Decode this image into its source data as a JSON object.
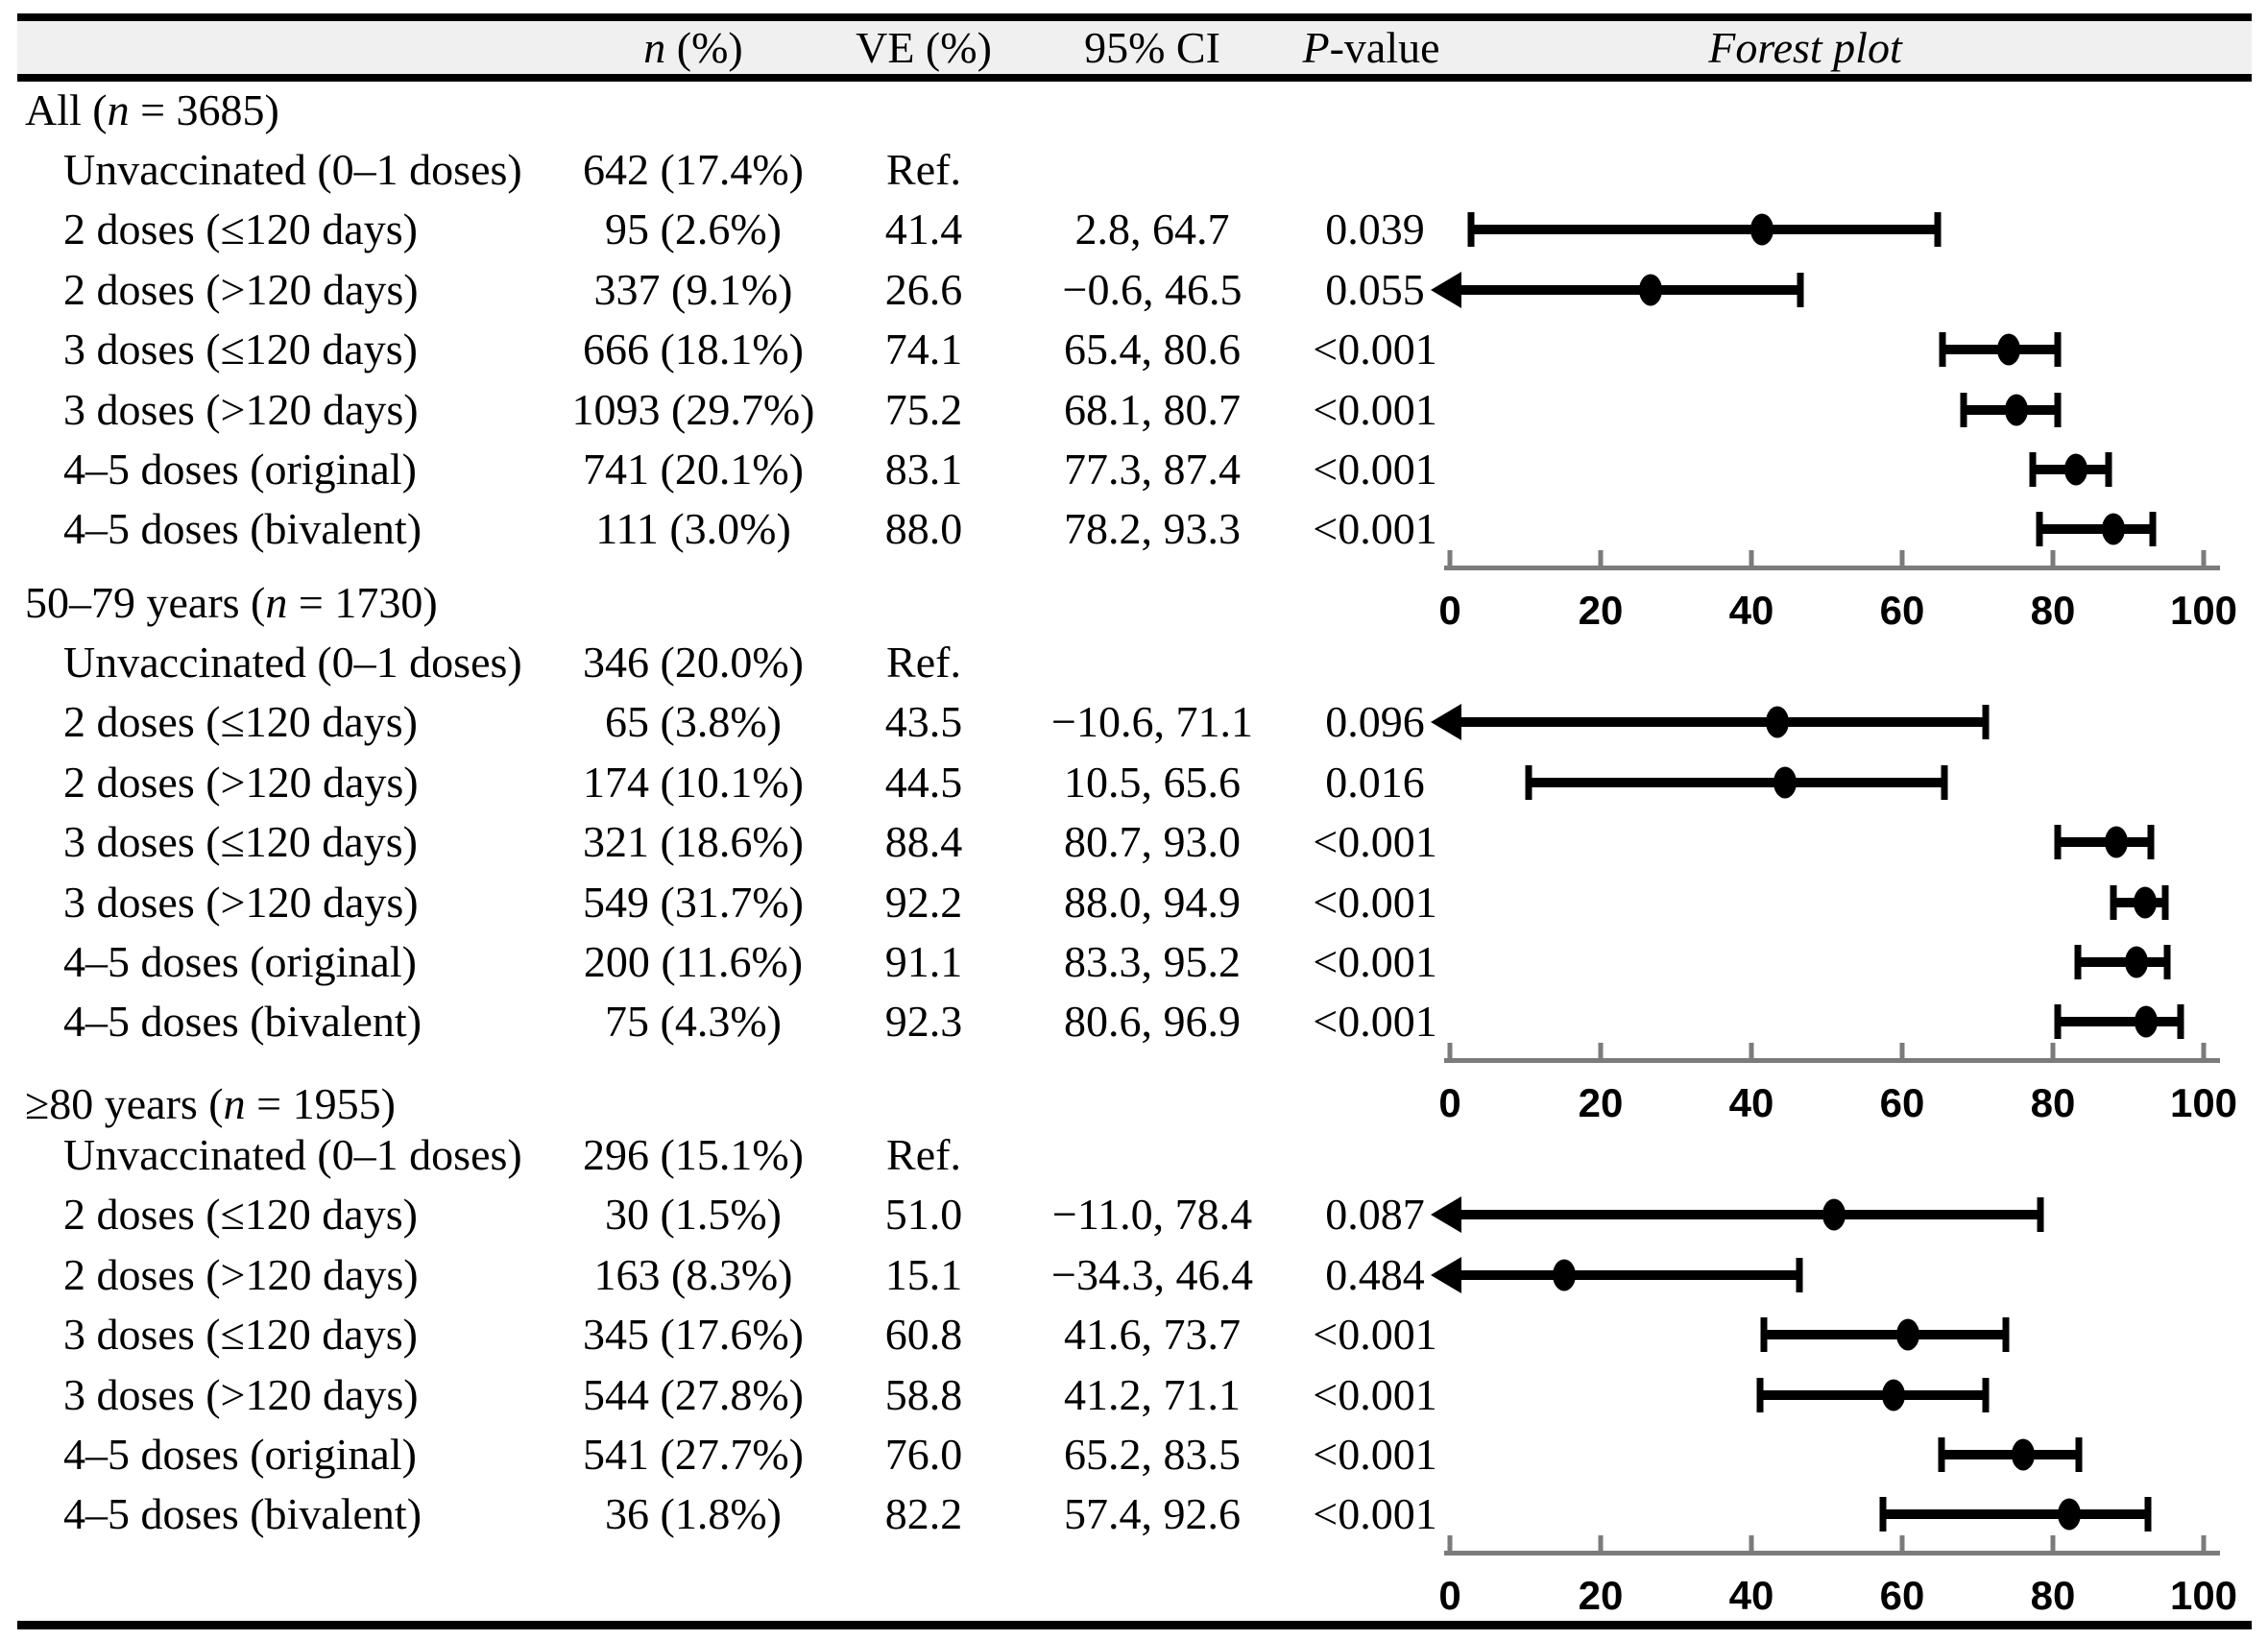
{
  "header": {
    "col_n_prefix": "n",
    "col_n_suffix": " (%)",
    "col_ve": "VE (%)",
    "col_ci": "95% CI",
    "col_p_prefix": "P",
    "col_p_suffix": "-value",
    "col_forest": "Forest plot"
  },
  "chart_data": {
    "type": "forest",
    "x_axis": {
      "range": [
        0,
        100
      ],
      "ticks": [
        0,
        20,
        40,
        60,
        80,
        100
      ]
    },
    "legend": "none",
    "sections": [
      {
        "label_pre": "All (",
        "label_var": "n",
        "label_post": " = 3685)",
        "rows": [
          {
            "label": "Unvaccinated (0–1 doses)",
            "n": "642 (17.4%)",
            "ve": "Ref.",
            "ci": "",
            "p": "",
            "est": null,
            "lo": null,
            "hi": null
          },
          {
            "label": "2 doses (≤120 days)",
            "n": "95 (2.6%)",
            "ve": "41.4",
            "ci": "2.8, 64.7",
            "p": "0.039",
            "est": 41.4,
            "lo": 2.8,
            "hi": 64.7
          },
          {
            "label": "2 doses (>120 days)",
            "n": "337 (9.1%)",
            "ve": "26.6",
            "ci": "−0.6, 46.5",
            "p": "0.055",
            "est": 26.6,
            "lo": -0.6,
            "hi": 46.5
          },
          {
            "label": "3 doses (≤120 days)",
            "n": "666 (18.1%)",
            "ve": "74.1",
            "ci": "65.4, 80.6",
            "p": "<0.001",
            "est": 74.1,
            "lo": 65.4,
            "hi": 80.6
          },
          {
            "label": "3 doses (>120 days)",
            "n": "1093 (29.7%)",
            "ve": "75.2",
            "ci": "68.1, 80.7",
            "p": "<0.001",
            "est": 75.2,
            "lo": 68.1,
            "hi": 80.7
          },
          {
            "label": "4–5 doses (original)",
            "n": "741 (20.1%)",
            "ve": "83.1",
            "ci": "77.3, 87.4",
            "p": "<0.001",
            "est": 83.1,
            "lo": 77.3,
            "hi": 87.4
          },
          {
            "label": "4–5 doses (bivalent)",
            "n": "111 (3.0%)",
            "ve": "88.0",
            "ci": "78.2, 93.3",
            "p": "<0.001",
            "est": 88.0,
            "lo": 78.2,
            "hi": 93.3
          }
        ]
      },
      {
        "label_pre": "50–79 years (",
        "label_var": "n",
        "label_post": " = 1730)",
        "rows": [
          {
            "label": "Unvaccinated (0–1 doses)",
            "n": "346 (20.0%)",
            "ve": "Ref.",
            "ci": "",
            "p": "",
            "est": null,
            "lo": null,
            "hi": null
          },
          {
            "label": "2 doses (≤120 days)",
            "n": "65 (3.8%)",
            "ve": "43.5",
            "ci": "−10.6, 71.1",
            "p": "0.096",
            "est": 43.5,
            "lo": -10.6,
            "hi": 71.1
          },
          {
            "label": "2 doses (>120 days)",
            "n": "174 (10.1%)",
            "ve": "44.5",
            "ci": "10.5, 65.6",
            "p": "0.016",
            "est": 44.5,
            "lo": 10.5,
            "hi": 65.6
          },
          {
            "label": "3 doses (≤120 days)",
            "n": "321 (18.6%)",
            "ve": "88.4",
            "ci": "80.7, 93.0",
            "p": "<0.001",
            "est": 88.4,
            "lo": 80.7,
            "hi": 93.0
          },
          {
            "label": "3 doses (>120 days)",
            "n": "549 (31.7%)",
            "ve": "92.2",
            "ci": "88.0, 94.9",
            "p": "<0.001",
            "est": 92.2,
            "lo": 88.0,
            "hi": 94.9
          },
          {
            "label": "4–5 doses (original)",
            "n": "200 (11.6%)",
            "ve": "91.1",
            "ci": "83.3, 95.2",
            "p": "<0.001",
            "est": 91.1,
            "lo": 83.3,
            "hi": 95.2
          },
          {
            "label": "4–5 doses (bivalent)",
            "n": "75 (4.3%)",
            "ve": "92.3",
            "ci": "80.6, 96.9",
            "p": "<0.001",
            "est": 92.3,
            "lo": 80.6,
            "hi": 96.9
          }
        ]
      },
      {
        "label_pre": "≥80 years (",
        "label_var": "n",
        "label_post": " = 1955)",
        "rows": [
          {
            "label": "Unvaccinated (0–1 doses)",
            "n": "296 (15.1%)",
            "ve": "Ref.",
            "ci": "",
            "p": "",
            "est": null,
            "lo": null,
            "hi": null
          },
          {
            "label": "2 doses (≤120 days)",
            "n": "30 (1.5%)",
            "ve": "51.0",
            "ci": "−11.0, 78.4",
            "p": "0.087",
            "est": 51.0,
            "lo": -11.0,
            "hi": 78.4
          },
          {
            "label": "2 doses (>120 days)",
            "n": "163 (8.3%)",
            "ve": "15.1",
            "ci": "−34.3, 46.4",
            "p": "0.484",
            "est": 15.1,
            "lo": -34.3,
            "hi": 46.4
          },
          {
            "label": "3 doses (≤120 days)",
            "n": "345 (17.6%)",
            "ve": "60.8",
            "ci": "41.6, 73.7",
            "p": "<0.001",
            "est": 60.8,
            "lo": 41.6,
            "hi": 73.7
          },
          {
            "label": "3 doses (>120 days)",
            "n": "544 (27.8%)",
            "ve": "58.8",
            "ci": "41.2, 71.1",
            "p": "<0.001",
            "est": 58.8,
            "lo": 41.2,
            "hi": 71.1
          },
          {
            "label": "4–5 doses (original)",
            "n": "541 (27.7%)",
            "ve": "76.0",
            "ci": "65.2, 83.5",
            "p": "<0.001",
            "est": 76.0,
            "lo": 65.2,
            "hi": 83.5
          },
          {
            "label": "4–5 doses (bivalent)",
            "n": "36 (1.8%)",
            "ve": "82.2",
            "ci": "57.4, 92.6",
            "p": "<0.001",
            "est": 82.2,
            "lo": 57.4,
            "hi": 92.6
          }
        ]
      }
    ]
  }
}
